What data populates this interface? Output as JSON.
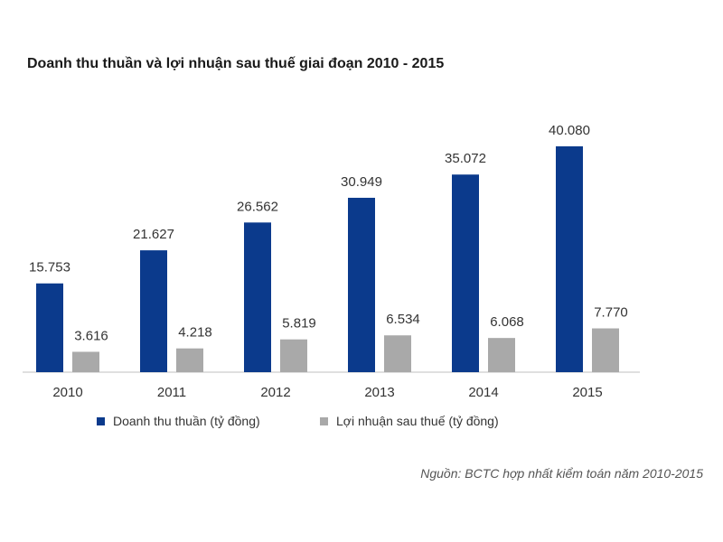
{
  "chart_data": {
    "type": "bar",
    "title": "Doanh thu thuần và lợi nhuận sau thuế giai đoạn 2010 - 2015",
    "categories": [
      "2010",
      "2011",
      "2012",
      "2013",
      "2014",
      "2015"
    ],
    "series": [
      {
        "name": "Doanh thu thuần (tỷ đồng)",
        "color": "#0b3a8c",
        "values": [
          15753,
          21627,
          26562,
          30949,
          35072,
          40080
        ],
        "labels": [
          "15.753",
          "21.627",
          "26.562",
          "30.949",
          "35.072",
          "40.080"
        ]
      },
      {
        "name": "Lợi nhuận sau thuế (tỷ đồng)",
        "color": "#a9a9a9",
        "values": [
          3616,
          4218,
          5819,
          6534,
          6068,
          7770
        ],
        "labels": [
          "3.616",
          "4.218",
          "5.819",
          "6.534",
          "6.068",
          "7.770"
        ]
      }
    ],
    "ylim": [
      0,
      40080
    ],
    "grid": false,
    "legend": "bottom",
    "source": "Nguồn: BCTC hợp nhất kiểm toán năm 2010-2015"
  }
}
